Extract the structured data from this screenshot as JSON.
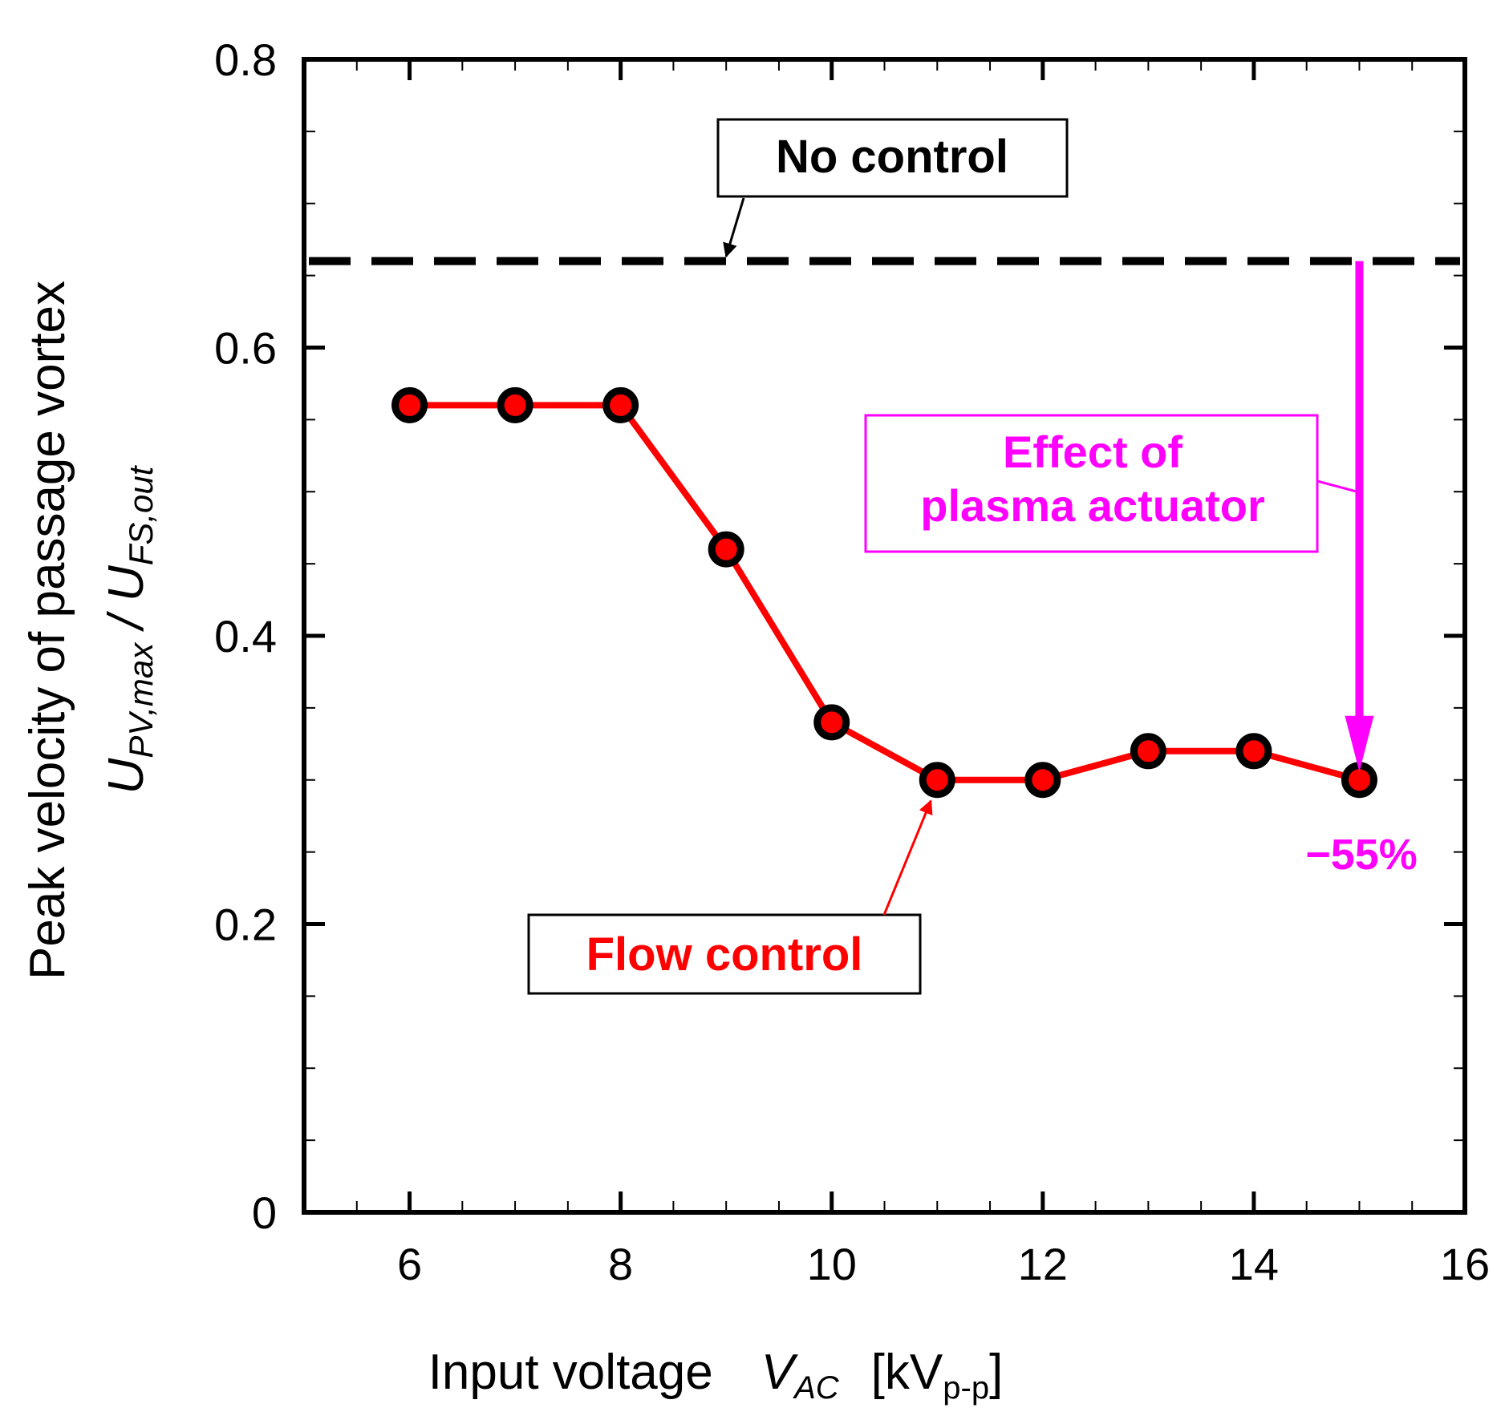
{
  "chart_data": {
    "type": "line",
    "xlabel": {
      "main": "Input voltage",
      "symbol": "V",
      "symbol_sub": "AC",
      "unit_open": "[kV",
      "unit_sub": "p-p",
      "unit_close": "]"
    },
    "ylabel": {
      "line1": "Peak velocity of passage vortex",
      "numer": "U",
      "numer_sub": "PV,max",
      "slash": " / ",
      "denom": "U",
      "denom_sub": "FS,out"
    },
    "xlim": [
      5,
      16
    ],
    "ylim": [
      0,
      0.8
    ],
    "x_ticks": [
      6,
      8,
      10,
      12,
      14,
      16
    ],
    "x_tick_labels": [
      "6",
      "8",
      "10",
      "12",
      "14",
      "16"
    ],
    "y_ticks": [
      0,
      0.2,
      0.4,
      0.6,
      0.8
    ],
    "y_tick_labels": [
      "0",
      "0.2",
      "0.4",
      "0.6",
      "0.8"
    ],
    "series": [
      {
        "name": "Flow control",
        "color": "#ff0000",
        "marker_fill": "#ff0000",
        "marker_edge": "#000000",
        "x": [
          6,
          7,
          8,
          9,
          10,
          11,
          12,
          13,
          14,
          15
        ],
        "y": [
          0.56,
          0.56,
          0.56,
          0.46,
          0.34,
          0.3,
          0.3,
          0.32,
          0.32,
          0.3
        ]
      }
    ],
    "reference_line": {
      "name": "No control",
      "y": 0.66,
      "color": "#000000",
      "style": "dashed"
    },
    "annotations": {
      "no_control": {
        "text": "No control",
        "color": "#000000",
        "arrow_to_x": 9.0
      },
      "flow_control": {
        "text": "Flow control",
        "color": "#ff0000",
        "arrow_to_x": 11,
        "arrow_to_y": 0.3
      },
      "effect": {
        "line1": "Effect of",
        "line2": "plasma actuator",
        "color": "#ff00ff",
        "arrow_x": 15,
        "from_y": 0.66,
        "to_y": 0.3
      },
      "percent": {
        "text": "−55%",
        "color": "#ff00ff"
      }
    }
  }
}
